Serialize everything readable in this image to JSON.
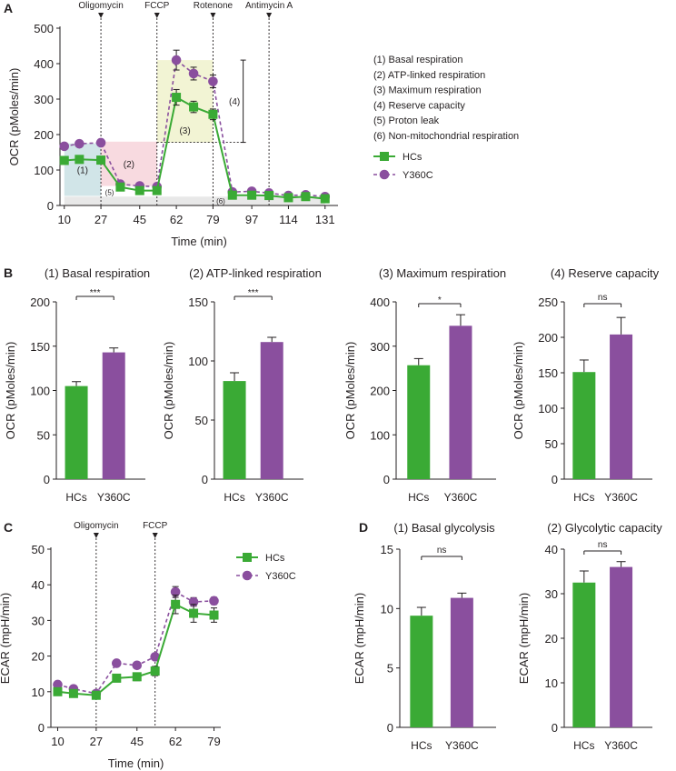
{
  "colors": {
    "hcs": "#3aaa35",
    "y360c": "#8a4f9e",
    "axis": "#231f20",
    "basal_shade": "#c9e0e4",
    "atp_shade": "#f7d3da",
    "max_shade": "#f0f2cc",
    "nonmito_shade": "#e4e4e4"
  },
  "markers": {
    "hcs": "square",
    "y360c": "circle"
  },
  "chart_data": [
    {
      "id": "A",
      "panel_label": "A",
      "type": "line",
      "title": "",
      "xlabel": "Time (min)",
      "ylabel": "OCR (pMoles/min)",
      "xlim": [
        8,
        137
      ],
      "ylim": [
        0,
        500
      ],
      "xticks": [
        10,
        27,
        45,
        62,
        79,
        97,
        114,
        131
      ],
      "yticks": [
        0,
        100,
        200,
        300,
        400,
        500
      ],
      "injections": [
        {
          "label": "Oligomycin",
          "x": 27
        },
        {
          "label": "FCCP",
          "x": 53
        },
        {
          "label": "Rotenone",
          "x": 79
        },
        {
          "label": "Antimycin A",
          "x": 105
        }
      ],
      "x": [
        10,
        17,
        27,
        36,
        45,
        53,
        62,
        70,
        79,
        88,
        97,
        105,
        114,
        122,
        131
      ],
      "series": [
        {
          "name": "HCs",
          "key": "hcs",
          "values": [
            127,
            130,
            128,
            52,
            42,
            42,
            305,
            278,
            257,
            29,
            29,
            28,
            22,
            25,
            19
          ],
          "errors": [
            6,
            5,
            6,
            7,
            5,
            5,
            22,
            16,
            15,
            6,
            4,
            4,
            6,
            5,
            3
          ]
        },
        {
          "name": "Y360C",
          "key": "y360c",
          "values": [
            167,
            174,
            177,
            60,
            55,
            53,
            410,
            372,
            350,
            38,
            40,
            35,
            28,
            30,
            25
          ],
          "errors": [
            4,
            5,
            5,
            8,
            5,
            5,
            28,
            18,
            18,
            4,
            5,
            4,
            4,
            4,
            3
          ]
        }
      ],
      "regions": [
        {
          "label": "(1)",
          "x0": 10,
          "x1": 27,
          "y0": 27,
          "y1": 175,
          "color_key": "basal_shade"
        },
        {
          "label": "(2)",
          "x0": 27,
          "x1": 53,
          "y0": 55,
          "y1": 180,
          "color_key": "atp_shade"
        },
        {
          "label": "(3)",
          "x0": 53,
          "x1": 79,
          "y0": 178,
          "y1": 410,
          "color_key": "max_shade"
        },
        {
          "label": "(6)",
          "x0": 10,
          "x1": 131,
          "y0": 0,
          "y1": 25,
          "color_key": "nonmito_shade"
        }
      ],
      "annotations": [
        {
          "label": "(5)",
          "x": 31,
          "y": 40
        },
        {
          "label": "(3)",
          "x": 66,
          "y": 213
        },
        {
          "label": "(4)",
          "x": 89,
          "y": 295
        }
      ],
      "bracket": {
        "x": 93,
        "y0": 178,
        "y1": 410,
        "ref_y": 178
      },
      "legend_items": [
        "(1) Basal respiration",
        "(2) ATP-linked respiration",
        "(3) Maximum respiration",
        "(4) Reserve capacity",
        "(5) Proton leak",
        "(6) Non-mitochondrial respiration"
      ],
      "legend": [
        "HCs",
        "Y360C"
      ],
      "legend_position": "right"
    },
    {
      "id": "B1",
      "panel_label": "B",
      "type": "bar",
      "title": "(1) Basal respiration",
      "xlabel": "",
      "ylabel": "OCR (pMoles/min)",
      "categories": [
        "HCs",
        "Y360C"
      ],
      "values": [
        105,
        143
      ],
      "errors": [
        5,
        5
      ],
      "ylim": [
        0,
        200
      ],
      "yticks": [
        0,
        50,
        100,
        150,
        200
      ],
      "significance": "***"
    },
    {
      "id": "B2",
      "type": "bar",
      "title": "(2) ATP-linked respiration",
      "xlabel": "",
      "ylabel": "OCR (pMoles/min)",
      "categories": [
        "HCs",
        "Y360C"
      ],
      "values": [
        83,
        116
      ],
      "errors": [
        7,
        4
      ],
      "ylim": [
        0,
        150
      ],
      "yticks": [
        0,
        50,
        100,
        150
      ],
      "significance": "***"
    },
    {
      "id": "B3",
      "type": "bar",
      "title": "(3) Maximum respiration",
      "xlabel": "",
      "ylabel": "OCR (pMoles/min)",
      "categories": [
        "HCs",
        "Y360C"
      ],
      "values": [
        257,
        346
      ],
      "errors": [
        15,
        25
      ],
      "ylim": [
        0,
        400
      ],
      "yticks": [
        0,
        100,
        200,
        300,
        400
      ],
      "significance": "*"
    },
    {
      "id": "B4",
      "type": "bar",
      "title": "(4) Reserve capacity",
      "xlabel": "",
      "ylabel": "OCR (pMoles/min)",
      "categories": [
        "HCs",
        "Y360C"
      ],
      "values": [
        151,
        204
      ],
      "errors": [
        17,
        24
      ],
      "ylim": [
        0,
        250
      ],
      "yticks": [
        0,
        50,
        100,
        150,
        200,
        250
      ],
      "significance": "ns"
    },
    {
      "id": "C",
      "panel_label": "C",
      "type": "line",
      "title": "",
      "xlabel": "Time (min)",
      "ylabel": "ECAR (mpH/min)",
      "xlim": [
        7,
        82
      ],
      "ylim": [
        0,
        50
      ],
      "xticks": [
        10,
        27,
        45,
        62,
        79
      ],
      "yticks": [
        0,
        10,
        20,
        30,
        40,
        50
      ],
      "injections": [
        {
          "label": "Oligomycin",
          "x": 27
        },
        {
          "label": "FCCP",
          "x": 53
        }
      ],
      "x": [
        10,
        17,
        27,
        36,
        45,
        53,
        62,
        70,
        79
      ],
      "series": [
        {
          "name": "HCs",
          "key": "hcs",
          "values": [
            10,
            9.5,
            9,
            13.8,
            14.2,
            15.8,
            34.5,
            32,
            31.5
          ],
          "errors": [
            0.5,
            0.5,
            0.6,
            1,
            1.1,
            1.3,
            2.6,
            2.5,
            2
          ]
        },
        {
          "name": "Y360C",
          "key": "y360c",
          "values": [
            12,
            10.8,
            9.5,
            18,
            17.4,
            19.8,
            38,
            35.2,
            35.5
          ],
          "errors": [
            0.5,
            0.5,
            0.5,
            0.6,
            0.5,
            0.6,
            1.5,
            1.2,
            1
          ]
        }
      ],
      "regions": [],
      "annotations": [],
      "legend": [
        "HCs",
        "Y360C"
      ],
      "legend_position": "right"
    },
    {
      "id": "D1",
      "panel_label": "D",
      "type": "bar",
      "title": "(1) Basal glycolysis",
      "xlabel": "",
      "ylabel": "ECAR (mpH/min)",
      "categories": [
        "HCs",
        "Y360C"
      ],
      "values": [
        9.4,
        10.9
      ],
      "errors": [
        0.7,
        0.4
      ],
      "ylim": [
        0,
        15
      ],
      "yticks": [
        0,
        5,
        10,
        15
      ],
      "significance": "ns"
    },
    {
      "id": "D2",
      "type": "bar",
      "title": "(2) Glycolytic capacity",
      "xlabel": "",
      "ylabel": "ECAR (mpH/min)",
      "categories": [
        "HCs",
        "Y360C"
      ],
      "values": [
        32.5,
        36
      ],
      "errors": [
        2.6,
        1.2
      ],
      "ylim": [
        0,
        40
      ],
      "yticks": [
        0,
        10,
        20,
        30,
        40
      ],
      "significance": "ns"
    }
  ]
}
